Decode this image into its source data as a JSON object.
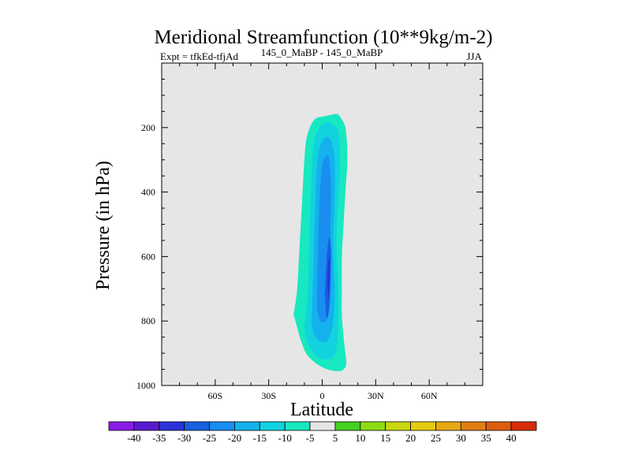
{
  "chart_data": {
    "type": "contour",
    "title": "Meridional Streamfunction (10**9kg/m-2)",
    "subtitle_left": "Expt = tfkEd-tfjAd",
    "subtitle_center": "145_0_MaBP - 145_0_MaBP",
    "subtitle_right": "JJA",
    "xlabel": "Latitude",
    "ylabel": "Pressure (in hPa)",
    "xlim": [
      -90,
      90
    ],
    "ylim": [
      1000,
      0
    ],
    "x_ticks": [
      {
        "value": -60,
        "label": "60S"
      },
      {
        "value": -30,
        "label": "30S"
      },
      {
        "value": 0,
        "label": "0"
      },
      {
        "value": 30,
        "label": "30N"
      },
      {
        "value": 60,
        "label": "60N"
      }
    ],
    "y_ticks": [
      {
        "value": 200,
        "label": "200"
      },
      {
        "value": 400,
        "label": "400"
      },
      {
        "value": 600,
        "label": "600"
      },
      {
        "value": 800,
        "label": "800"
      },
      {
        "value": 1000,
        "label": "1000"
      }
    ],
    "levels": [
      -40,
      -35,
      -30,
      -25,
      -20,
      -15,
      -10,
      -5,
      5,
      10,
      15,
      20,
      25,
      30,
      35,
      40
    ],
    "colorbar_colors": [
      "#8a1be6",
      "#5a1ad0",
      "#2a33d8",
      "#1660e0",
      "#1a8ef0",
      "#14b2ec",
      "#12d2e0",
      "#18e8c0",
      "#e6e6e6",
      "#44d020",
      "#8cdc14",
      "#c8d810",
      "#e6cc10",
      "#e6a814",
      "#e07e12",
      "#de5c10",
      "#d82e0a"
    ],
    "background_color": "#e6e6e6",
    "contours": [
      {
        "level": "-5",
        "color": "#18e8c0",
        "lat": [
          -16,
          -14,
          -13,
          -12,
          -11,
          -10,
          -9,
          -7,
          -5,
          -3,
          1,
          4,
          7,
          9,
          11,
          13,
          14,
          14,
          13,
          12,
          11,
          11,
          11,
          12,
          13,
          13.5,
          12,
          10,
          7,
          3,
          -1,
          -5,
          -9,
          -12,
          -14,
          -16
        ],
        "pressure": [
          780,
          700,
          600,
          500,
          400,
          300,
          240,
          200,
          180,
          170,
          165,
          162,
          158,
          160,
          175,
          200,
          260,
          320,
          400,
          500,
          600,
          700,
          780,
          850,
          900,
          935,
          950,
          955,
          955,
          950,
          940,
          925,
          900,
          860,
          820,
          780
        ]
      },
      {
        "level": "-10",
        "color": "#12d2e0",
        "lat": [
          -10,
          -8,
          -7,
          -6,
          -5,
          -3,
          0,
          3,
          6,
          9,
          10,
          9,
          8,
          9,
          9,
          8,
          5,
          0,
          -4,
          -7,
          -9,
          -10
        ],
        "pressure": [
          820,
          700,
          500,
          350,
          260,
          215,
          190,
          182,
          190,
          215,
          300,
          420,
          560,
          700,
          820,
          890,
          915,
          918,
          905,
          880,
          855,
          820
        ]
      },
      {
        "level": "-15",
        "color": "#14b2ec",
        "lat": [
          -6,
          -5,
          -4,
          -3,
          -1,
          2,
          5,
          7,
          7,
          6,
          7,
          6,
          3,
          0,
          -3,
          -5,
          -6
        ],
        "pressure": [
          800,
          650,
          450,
          320,
          255,
          230,
          240,
          300,
          420,
          560,
          700,
          810,
          860,
          865,
          855,
          835,
          800
        ]
      },
      {
        "level": "-20",
        "color": "#1a8ef0",
        "lat": [
          -3,
          -2.5,
          -1.5,
          0,
          2,
          4,
          5,
          4.5,
          5,
          4,
          2,
          -1,
          -3
        ],
        "pressure": [
          760,
          600,
          420,
          320,
          290,
          300,
          400,
          530,
          660,
          760,
          800,
          800,
          760
        ]
      },
      {
        "level": "-25",
        "color": "#1660e0",
        "lat": [
          1.5,
          2.5,
          4,
          5,
          4.5,
          4,
          2.5,
          1.5
        ],
        "pressure": [
          720,
          600,
          540,
          590,
          680,
          760,
          790,
          720
        ]
      },
      {
        "level": "-30",
        "color": "#2a33d8",
        "lat": [
          2.8,
          3.4,
          4.1,
          4.3,
          3.7,
          2.8
        ],
        "pressure": [
          690,
          620,
          600,
          650,
          730,
          690
        ]
      }
    ]
  }
}
